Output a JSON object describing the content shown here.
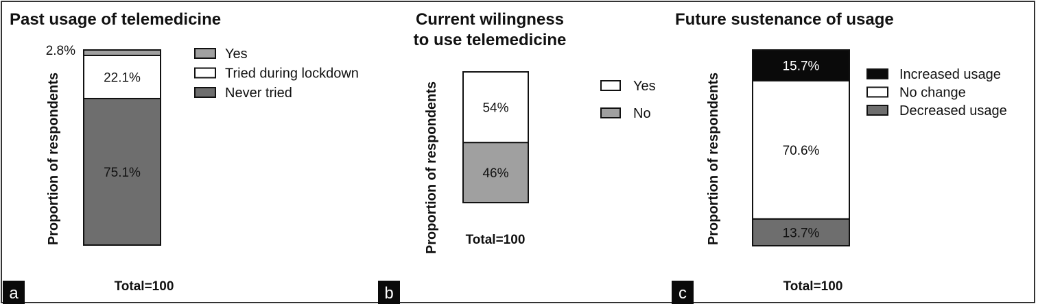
{
  "figure": {
    "colors": {
      "black": "#0a0a0a",
      "dark_gray": "#6e6e6e",
      "mid_gray": "#a0a0a0",
      "white": "#ffffff"
    }
  },
  "chart_data": [
    {
      "panel_label": "a",
      "type": "bar",
      "stacked": true,
      "title": "Past usage of telemedicine",
      "ylabel": "Proportion of respondents",
      "xlabel": "Total=100",
      "ylim": [
        0,
        100
      ],
      "categories": [
        "Total=100"
      ],
      "series": [
        {
          "name": "Never tried",
          "values": [
            75.1
          ],
          "label": "75.1%",
          "color": "#6e6e6e"
        },
        {
          "name": "Tried during lockdown",
          "values": [
            22.1
          ],
          "label": "22.1%",
          "color": "#ffffff"
        },
        {
          "name": "Yes",
          "values": [
            2.8
          ],
          "label": "2.8%",
          "color": "#a0a0a0"
        }
      ],
      "legend": [
        "Yes",
        "Tried during lockdown",
        "Never tried"
      ],
      "legend_colors": [
        "#a0a0a0",
        "#ffffff",
        "#6e6e6e"
      ],
      "legend_position": "right"
    },
    {
      "panel_label": "b",
      "type": "bar",
      "stacked": true,
      "title": "Current wilingness to use telemedicine",
      "ylabel": "Proportion of respondents",
      "xlabel": "Total=100",
      "ylim": [
        0,
        100
      ],
      "categories": [
        "Total=100"
      ],
      "series": [
        {
          "name": "No",
          "values": [
            46
          ],
          "label": "46%",
          "color": "#a0a0a0"
        },
        {
          "name": "Yes",
          "values": [
            54
          ],
          "label": "54%",
          "color": "#ffffff"
        }
      ],
      "legend": [
        "Yes",
        "No"
      ],
      "legend_colors": [
        "#ffffff",
        "#a0a0a0"
      ],
      "legend_position": "right"
    },
    {
      "panel_label": "c",
      "type": "bar",
      "stacked": true,
      "title": "Future sustenance of usage",
      "ylabel": "Proportion of respondents",
      "xlabel": "Total=100",
      "ylim": [
        0,
        100
      ],
      "categories": [
        "Total=100"
      ],
      "series": [
        {
          "name": "Decreased usage",
          "values": [
            13.7
          ],
          "label": "13.7%",
          "color": "#6e6e6e"
        },
        {
          "name": "No change",
          "values": [
            70.6
          ],
          "label": "70.6%",
          "color": "#ffffff"
        },
        {
          "name": "Increased usage",
          "values": [
            15.7
          ],
          "label": "15.7%",
          "color": "#0a0a0a"
        }
      ],
      "legend": [
        "Increased usage",
        "No change",
        "Decreased usage"
      ],
      "legend_colors": [
        "#0a0a0a",
        "#ffffff",
        "#6e6e6e"
      ],
      "legend_position": "right"
    }
  ]
}
